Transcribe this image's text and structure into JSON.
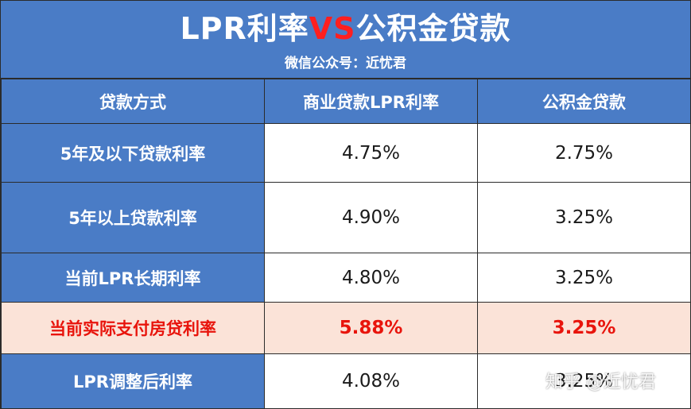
{
  "header": {
    "title_part1": "LPR利率",
    "title_vs": "VS",
    "title_part2": "公积金贷款",
    "subtitle": "微信公众号：近忧君"
  },
  "colors": {
    "header_blue": "#4a7cc6",
    "highlight_bg": "#fbe3d8",
    "highlight_text": "#e8140c",
    "vs_red": "#ff1f1f"
  },
  "table": {
    "columns": [
      "贷款方式",
      "商业贷款LPR利率",
      "公积金贷款"
    ],
    "rows": [
      {
        "label": "5年及以下贷款利率",
        "lpr": "4.75%",
        "fund": "2.75%"
      },
      {
        "label": "5年以上贷款利率",
        "lpr": "4.90%",
        "fund": "3.25%"
      },
      {
        "label": "当前LPR长期利率",
        "lpr": "4.80%",
        "fund": "3.25%"
      },
      {
        "label": "当前实际支付房贷利率",
        "lpr": "5.88%",
        "fund": "3.25%"
      },
      {
        "label": "LPR调整后利率",
        "lpr": "4.08%",
        "fund": "3.25%"
      }
    ]
  },
  "watermark": "知乎 @近忧君"
}
